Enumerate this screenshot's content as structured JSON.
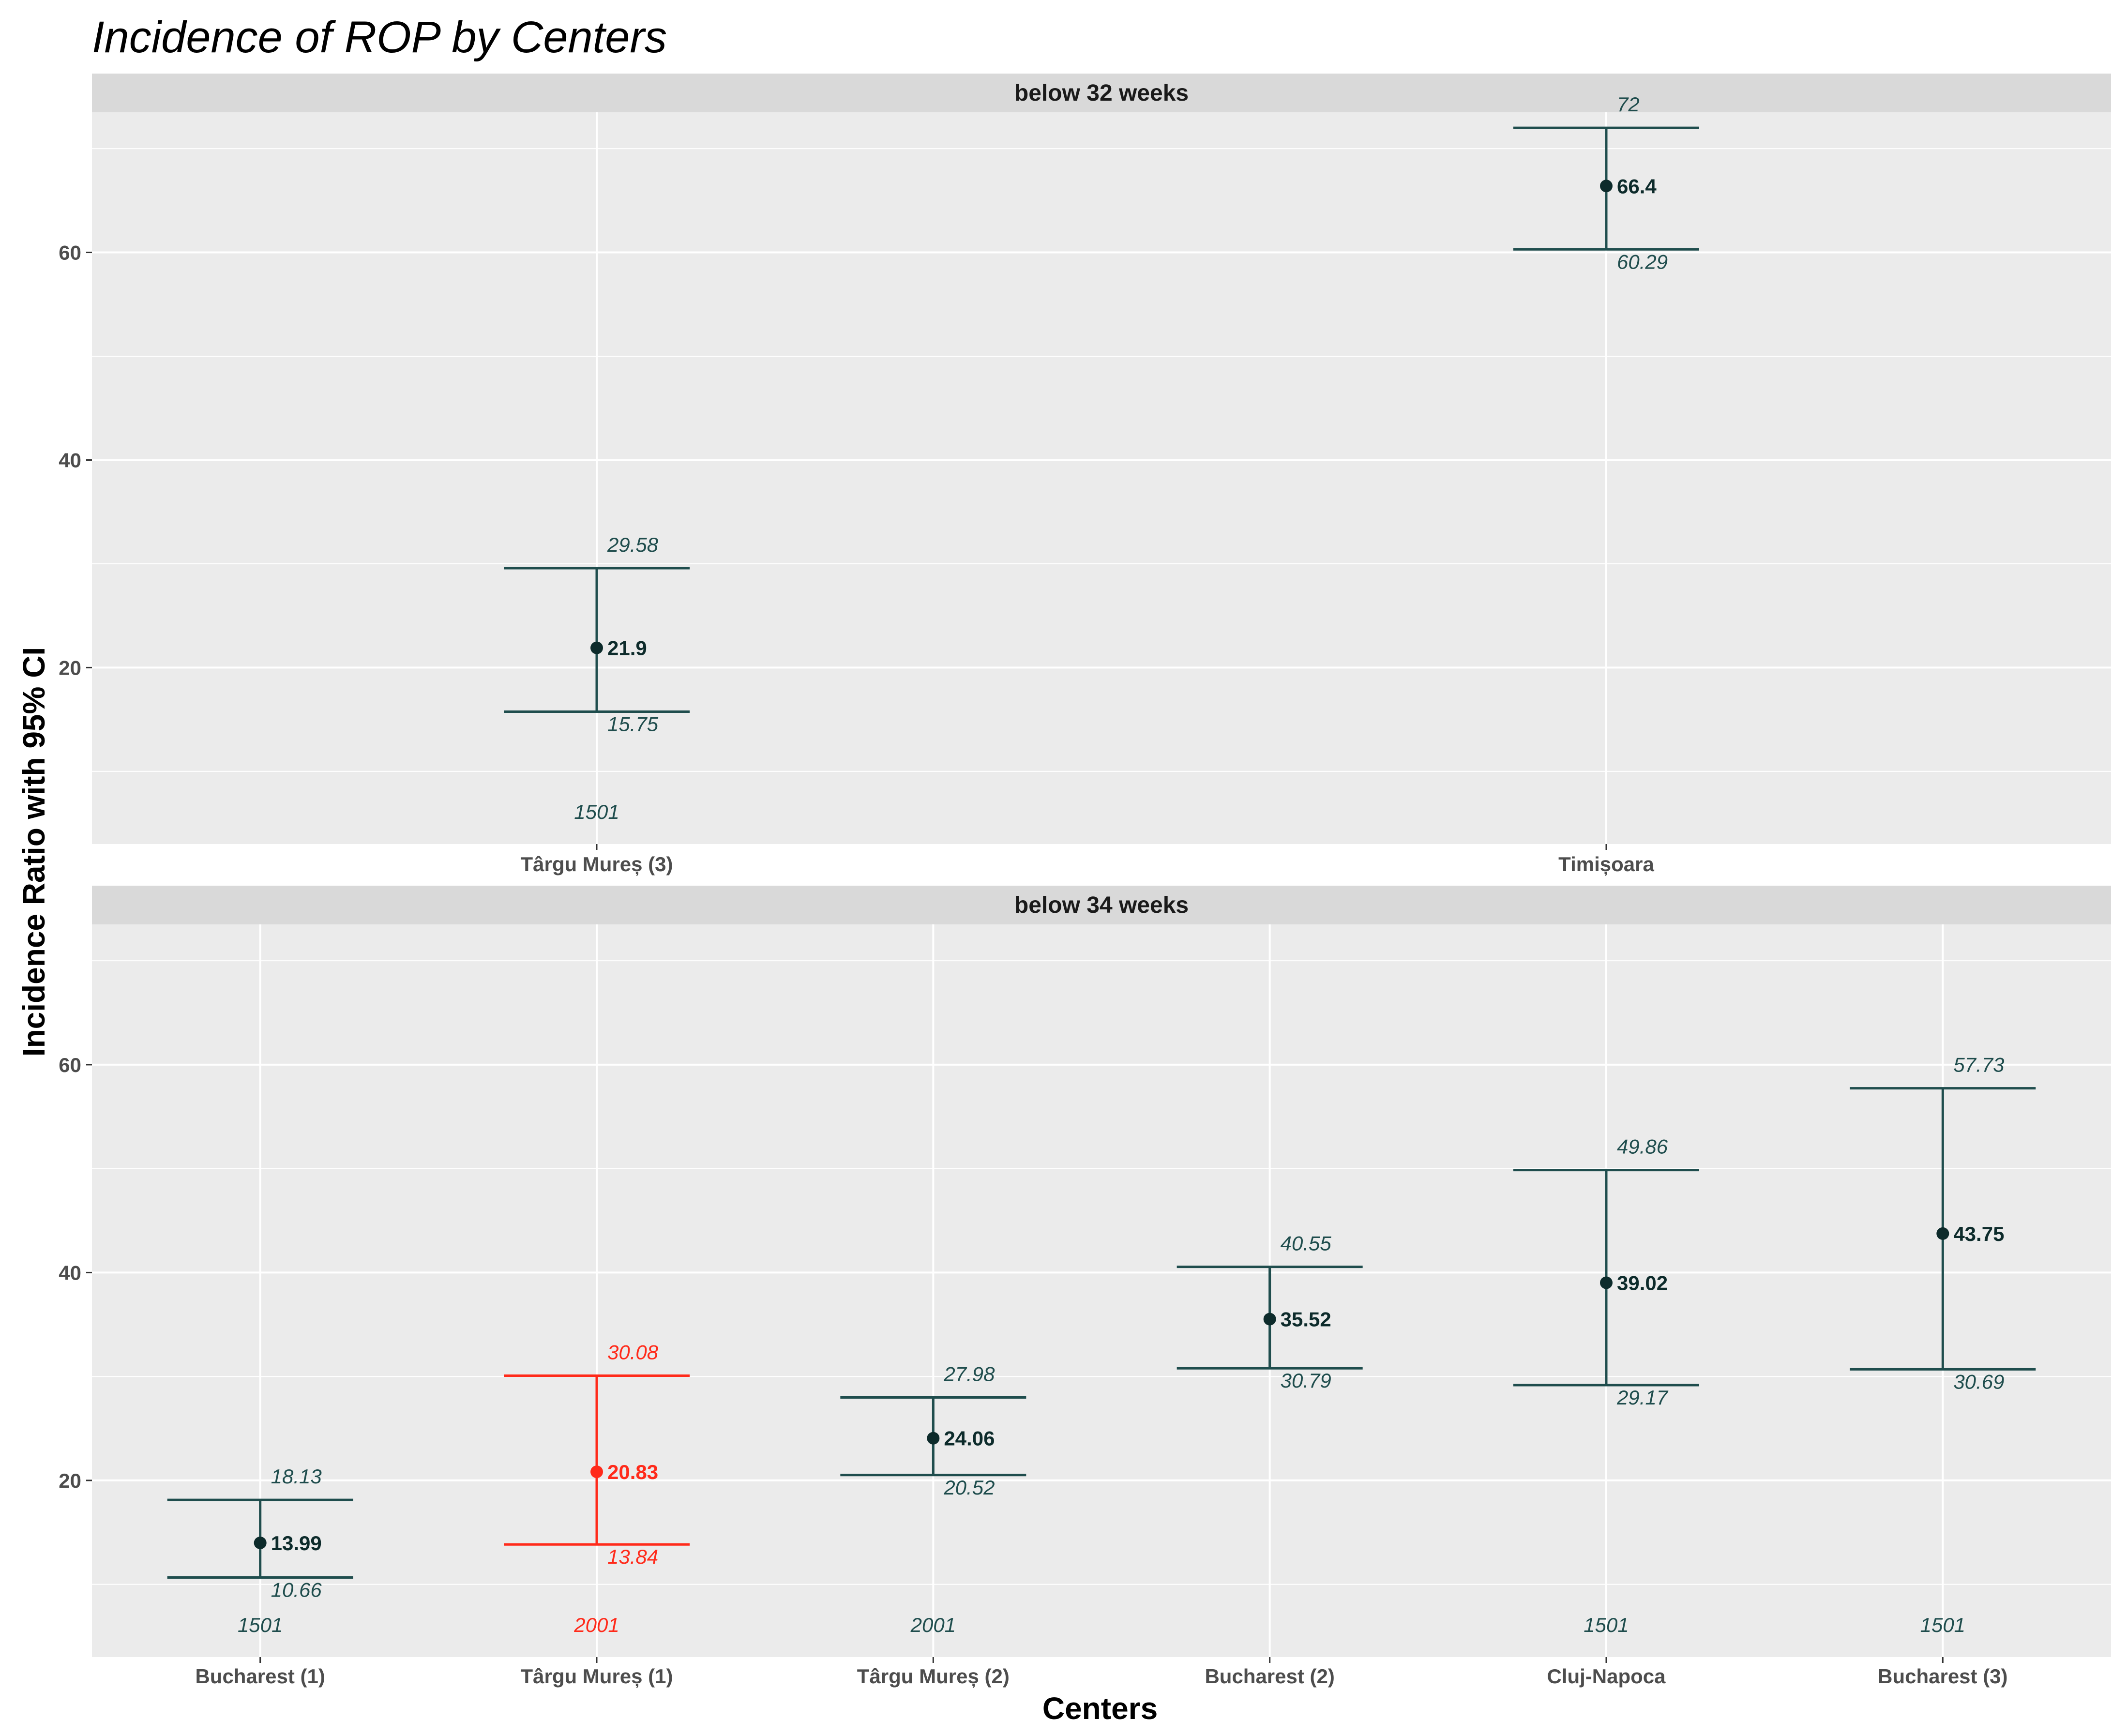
{
  "chart_data": {
    "type": "errorbar",
    "title": "Incidence of ROP by Centers",
    "xlabel": "Centers",
    "ylabel": "Incidence Ratio with 95% CI",
    "ylim": [
      3,
      73.5
    ],
    "y_ticks": [
      20,
      40,
      60
    ],
    "grid": true,
    "colors": {
      "default": "#1f4d4d",
      "point": "#0d2b2b",
      "highlight": "#ff2a1a",
      "panel_bg": "#ebebeb",
      "strip_bg": "#d9d9d9",
      "grid": "#ffffff"
    },
    "panels": [
      {
        "label": "below 32 weeks",
        "categories": [
          "Târgu Mureș (3)",
          "Timișoara"
        ],
        "points": [
          {
            "category": "Târgu Mureș (3)",
            "estimate": 21.9,
            "lower": 15.75,
            "upper": 29.58,
            "estimate_label": "21.9",
            "lower_label": "15.75",
            "upper_label": "29.58",
            "n_label": "1501",
            "highlight": false
          },
          {
            "category": "Timișoara",
            "estimate": 66.4,
            "lower": 60.29,
            "upper": 72,
            "estimate_label": "66.4",
            "lower_label": "60.29",
            "upper_label": "72",
            "n_label": "",
            "highlight": false
          }
        ]
      },
      {
        "label": "below 34 weeks",
        "categories": [
          "Bucharest (1)",
          "Târgu Mureș (1)",
          "Târgu Mureș (2)",
          "Bucharest (2)",
          "Cluj-Napoca",
          "Bucharest (3)"
        ],
        "points": [
          {
            "category": "Bucharest (1)",
            "estimate": 13.99,
            "lower": 10.66,
            "upper": 18.13,
            "estimate_label": "13.99",
            "lower_label": "10.66",
            "upper_label": "18.13",
            "n_label": "1501",
            "highlight": false
          },
          {
            "category": "Târgu Mureș (1)",
            "estimate": 20.83,
            "lower": 13.84,
            "upper": 30.08,
            "estimate_label": "20.83",
            "lower_label": "13.84",
            "upper_label": "30.08",
            "n_label": "2001",
            "highlight": true
          },
          {
            "category": "Târgu Mureș (2)",
            "estimate": 24.06,
            "lower": 20.52,
            "upper": 27.98,
            "estimate_label": "24.06",
            "lower_label": "20.52",
            "upper_label": "27.98",
            "n_label": "2001",
            "highlight": false
          },
          {
            "category": "Bucharest (2)",
            "estimate": 35.52,
            "lower": 30.79,
            "upper": 40.55,
            "estimate_label": "35.52",
            "lower_label": "30.79",
            "upper_label": "40.55",
            "n_label": "",
            "highlight": false
          },
          {
            "category": "Cluj-Napoca",
            "estimate": 39.02,
            "lower": 29.17,
            "upper": 49.86,
            "estimate_label": "39.02",
            "lower_label": "29.17",
            "upper_label": "49.86",
            "n_label": "1501",
            "highlight": false
          },
          {
            "category": "Bucharest (3)",
            "estimate": 43.75,
            "lower": 30.69,
            "upper": 57.73,
            "estimate_label": "43.75",
            "lower_label": "30.69",
            "upper_label": "57.73",
            "n_label": "1501",
            "highlight": false
          }
        ]
      }
    ]
  }
}
